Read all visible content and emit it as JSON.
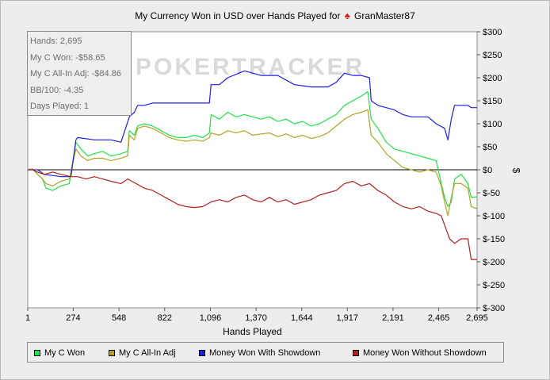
{
  "title_prefix": "My Currency Won in USD over Hands Played for",
  "player": "GranMaster87",
  "watermark": "POKERTRACKER",
  "stats": [
    "Hands: 2,695",
    "My C Won: -$58.65",
    "My C All-In Adj: -$84.86",
    "BB/100: -4.35",
    "Days Played: 1"
  ],
  "chart_data": {
    "type": "line",
    "xlabel": "Hands Played",
    "ylabel": "$",
    "xlim": [
      1,
      2695
    ],
    "ylim": [
      -300,
      300
    ],
    "x_ticks": [
      1,
      274,
      548,
      822,
      1096,
      1370,
      1644,
      1917,
      2191,
      2465,
      2695
    ],
    "x_tick_labels": [
      "1",
      "274",
      "548",
      "822",
      "1,096",
      "1,370",
      "1,644",
      "1,917",
      "2,191",
      "2,465",
      "2,695"
    ],
    "y_ticks": [
      300,
      250,
      200,
      150,
      100,
      50,
      0,
      -50,
      -100,
      -150,
      -200,
      -250,
      -300
    ],
    "y_tick_labels": [
      "$300",
      "$250",
      "$200",
      "$150",
      "$100",
      "$50",
      "$0",
      "$-50",
      "$-100",
      "$-150",
      "$-200",
      "$-250",
      "$-300"
    ],
    "legend_position": "bottom",
    "series": [
      {
        "name": "My C Won",
        "color": "#21e24a",
        "points": [
          [
            1,
            0
          ],
          [
            30,
            2
          ],
          [
            60,
            -10
          ],
          [
            90,
            -20
          ],
          [
            110,
            -40
          ],
          [
            150,
            -45
          ],
          [
            200,
            -35
          ],
          [
            250,
            -30
          ],
          [
            290,
            60
          ],
          [
            320,
            45
          ],
          [
            360,
            30
          ],
          [
            400,
            35
          ],
          [
            450,
            40
          ],
          [
            500,
            30
          ],
          [
            560,
            35
          ],
          [
            600,
            40
          ],
          [
            610,
            85
          ],
          [
            640,
            75
          ],
          [
            660,
            95
          ],
          [
            700,
            100
          ],
          [
            750,
            95
          ],
          [
            800,
            85
          ],
          [
            850,
            75
          ],
          [
            900,
            70
          ],
          [
            950,
            70
          ],
          [
            1000,
            75
          ],
          [
            1050,
            70
          ],
          [
            1090,
            80
          ],
          [
            1100,
            120
          ],
          [
            1150,
            110
          ],
          [
            1200,
            125
          ],
          [
            1250,
            115
          ],
          [
            1300,
            120
          ],
          [
            1350,
            115
          ],
          [
            1400,
            110
          ],
          [
            1450,
            115
          ],
          [
            1500,
            105
          ],
          [
            1550,
            110
          ],
          [
            1600,
            100
          ],
          [
            1650,
            105
          ],
          [
            1700,
            95
          ],
          [
            1750,
            100
          ],
          [
            1800,
            110
          ],
          [
            1850,
            120
          ],
          [
            1900,
            140
          ],
          [
            1950,
            150
          ],
          [
            2000,
            160
          ],
          [
            2040,
            170
          ],
          [
            2060,
            110
          ],
          [
            2100,
            90
          ],
          [
            2150,
            60
          ],
          [
            2200,
            45
          ],
          [
            2250,
            40
          ],
          [
            2300,
            35
          ],
          [
            2350,
            30
          ],
          [
            2400,
            25
          ],
          [
            2450,
            20
          ],
          [
            2480,
            -30
          ],
          [
            2500,
            -60
          ],
          [
            2520,
            -80
          ],
          [
            2540,
            -70
          ],
          [
            2560,
            -20
          ],
          [
            2600,
            -10
          ],
          [
            2640,
            -30
          ],
          [
            2660,
            -60
          ],
          [
            2695,
            -58.65
          ]
        ]
      },
      {
        "name": "My C All-In Adj",
        "color": "#b2a22a",
        "points": [
          [
            1,
            0
          ],
          [
            30,
            2
          ],
          [
            60,
            -10
          ],
          [
            90,
            -20
          ],
          [
            110,
            -30
          ],
          [
            150,
            -35
          ],
          [
            200,
            -25
          ],
          [
            250,
            -20
          ],
          [
            290,
            45
          ],
          [
            320,
            30
          ],
          [
            360,
            20
          ],
          [
            400,
            25
          ],
          [
            450,
            25
          ],
          [
            500,
            20
          ],
          [
            560,
            25
          ],
          [
            600,
            30
          ],
          [
            610,
            75
          ],
          [
            640,
            65
          ],
          [
            660,
            90
          ],
          [
            700,
            95
          ],
          [
            750,
            90
          ],
          [
            800,
            80
          ],
          [
            850,
            70
          ],
          [
            900,
            65
          ],
          [
            950,
            62
          ],
          [
            1000,
            65
          ],
          [
            1050,
            62
          ],
          [
            1090,
            70
          ],
          [
            1100,
            80
          ],
          [
            1150,
            75
          ],
          [
            1200,
            85
          ],
          [
            1250,
            80
          ],
          [
            1300,
            85
          ],
          [
            1350,
            75
          ],
          [
            1400,
            78
          ],
          [
            1450,
            80
          ],
          [
            1500,
            72
          ],
          [
            1550,
            78
          ],
          [
            1600,
            70
          ],
          [
            1650,
            75
          ],
          [
            1700,
            68
          ],
          [
            1750,
            72
          ],
          [
            1800,
            80
          ],
          [
            1850,
            95
          ],
          [
            1900,
            110
          ],
          [
            1950,
            120
          ],
          [
            2000,
            125
          ],
          [
            2040,
            130
          ],
          [
            2060,
            75
          ],
          [
            2100,
            60
          ],
          [
            2150,
            35
          ],
          [
            2200,
            20
          ],
          [
            2250,
            5
          ],
          [
            2300,
            0
          ],
          [
            2350,
            -5
          ],
          [
            2400,
            0
          ],
          [
            2450,
            -5
          ],
          [
            2480,
            -35
          ],
          [
            2500,
            -70
          ],
          [
            2520,
            -100
          ],
          [
            2540,
            -60
          ],
          [
            2560,
            -30
          ],
          [
            2600,
            -30
          ],
          [
            2640,
            -40
          ],
          [
            2660,
            -80
          ],
          [
            2695,
            -84.86
          ]
        ]
      },
      {
        "name": "Money Won With Showdown",
        "color": "#1f1fe0",
        "points": [
          [
            1,
            0
          ],
          [
            60,
            0
          ],
          [
            100,
            -10
          ],
          [
            200,
            -15
          ],
          [
            260,
            -15
          ],
          [
            290,
            65
          ],
          [
            300,
            70
          ],
          [
            400,
            65
          ],
          [
            500,
            65
          ],
          [
            560,
            60
          ],
          [
            610,
            115
          ],
          [
            640,
            125
          ],
          [
            660,
            140
          ],
          [
            700,
            140
          ],
          [
            750,
            145
          ],
          [
            850,
            145
          ],
          [
            950,
            145
          ],
          [
            1000,
            145
          ],
          [
            1090,
            145
          ],
          [
            1100,
            185
          ],
          [
            1150,
            185
          ],
          [
            1200,
            200
          ],
          [
            1300,
            215
          ],
          [
            1400,
            205
          ],
          [
            1500,
            205
          ],
          [
            1600,
            185
          ],
          [
            1700,
            180
          ],
          [
            1800,
            180
          ],
          [
            1850,
            190
          ],
          [
            1900,
            210
          ],
          [
            1950,
            205
          ],
          [
            2000,
            205
          ],
          [
            2050,
            200
          ],
          [
            2060,
            150
          ],
          [
            2100,
            140
          ],
          [
            2200,
            130
          ],
          [
            2250,
            120
          ],
          [
            2300,
            115
          ],
          [
            2350,
            115
          ],
          [
            2400,
            115
          ],
          [
            2450,
            100
          ],
          [
            2500,
            90
          ],
          [
            2520,
            65
          ],
          [
            2540,
            110
          ],
          [
            2560,
            140
          ],
          [
            2600,
            140
          ],
          [
            2640,
            140
          ],
          [
            2660,
            135
          ],
          [
            2695,
            135
          ]
        ]
      },
      {
        "name": "Money Won Without Showdown",
        "color": "#b02020",
        "points": [
          [
            1,
            0
          ],
          [
            30,
            0
          ],
          [
            60,
            -5
          ],
          [
            100,
            -10
          ],
          [
            150,
            -5
          ],
          [
            200,
            -10
          ],
          [
            260,
            -15
          ],
          [
            300,
            -15
          ],
          [
            350,
            -20
          ],
          [
            400,
            -15
          ],
          [
            450,
            -20
          ],
          [
            500,
            -25
          ],
          [
            560,
            -30
          ],
          [
            600,
            -20
          ],
          [
            650,
            -30
          ],
          [
            700,
            -40
          ],
          [
            750,
            -45
          ],
          [
            800,
            -55
          ],
          [
            850,
            -65
          ],
          [
            900,
            -75
          ],
          [
            950,
            -80
          ],
          [
            1000,
            -82
          ],
          [
            1050,
            -80
          ],
          [
            1100,
            -70
          ],
          [
            1150,
            -65
          ],
          [
            1200,
            -70
          ],
          [
            1250,
            -60
          ],
          [
            1300,
            -55
          ],
          [
            1350,
            -65
          ],
          [
            1400,
            -70
          ],
          [
            1450,
            -60
          ],
          [
            1500,
            -70
          ],
          [
            1550,
            -65
          ],
          [
            1600,
            -75
          ],
          [
            1650,
            -70
          ],
          [
            1700,
            -65
          ],
          [
            1750,
            -55
          ],
          [
            1800,
            -50
          ],
          [
            1850,
            -45
          ],
          [
            1900,
            -30
          ],
          [
            1950,
            -25
          ],
          [
            2000,
            -35
          ],
          [
            2050,
            -30
          ],
          [
            2100,
            -45
          ],
          [
            2150,
            -55
          ],
          [
            2200,
            -70
          ],
          [
            2250,
            -80
          ],
          [
            2300,
            -85
          ],
          [
            2350,
            -80
          ],
          [
            2400,
            -90
          ],
          [
            2450,
            -95
          ],
          [
            2480,
            -100
          ],
          [
            2500,
            -120
          ],
          [
            2530,
            -150
          ],
          [
            2560,
            -160
          ],
          [
            2600,
            -150
          ],
          [
            2640,
            -150
          ],
          [
            2660,
            -195
          ],
          [
            2695,
            -195
          ]
        ]
      }
    ]
  }
}
